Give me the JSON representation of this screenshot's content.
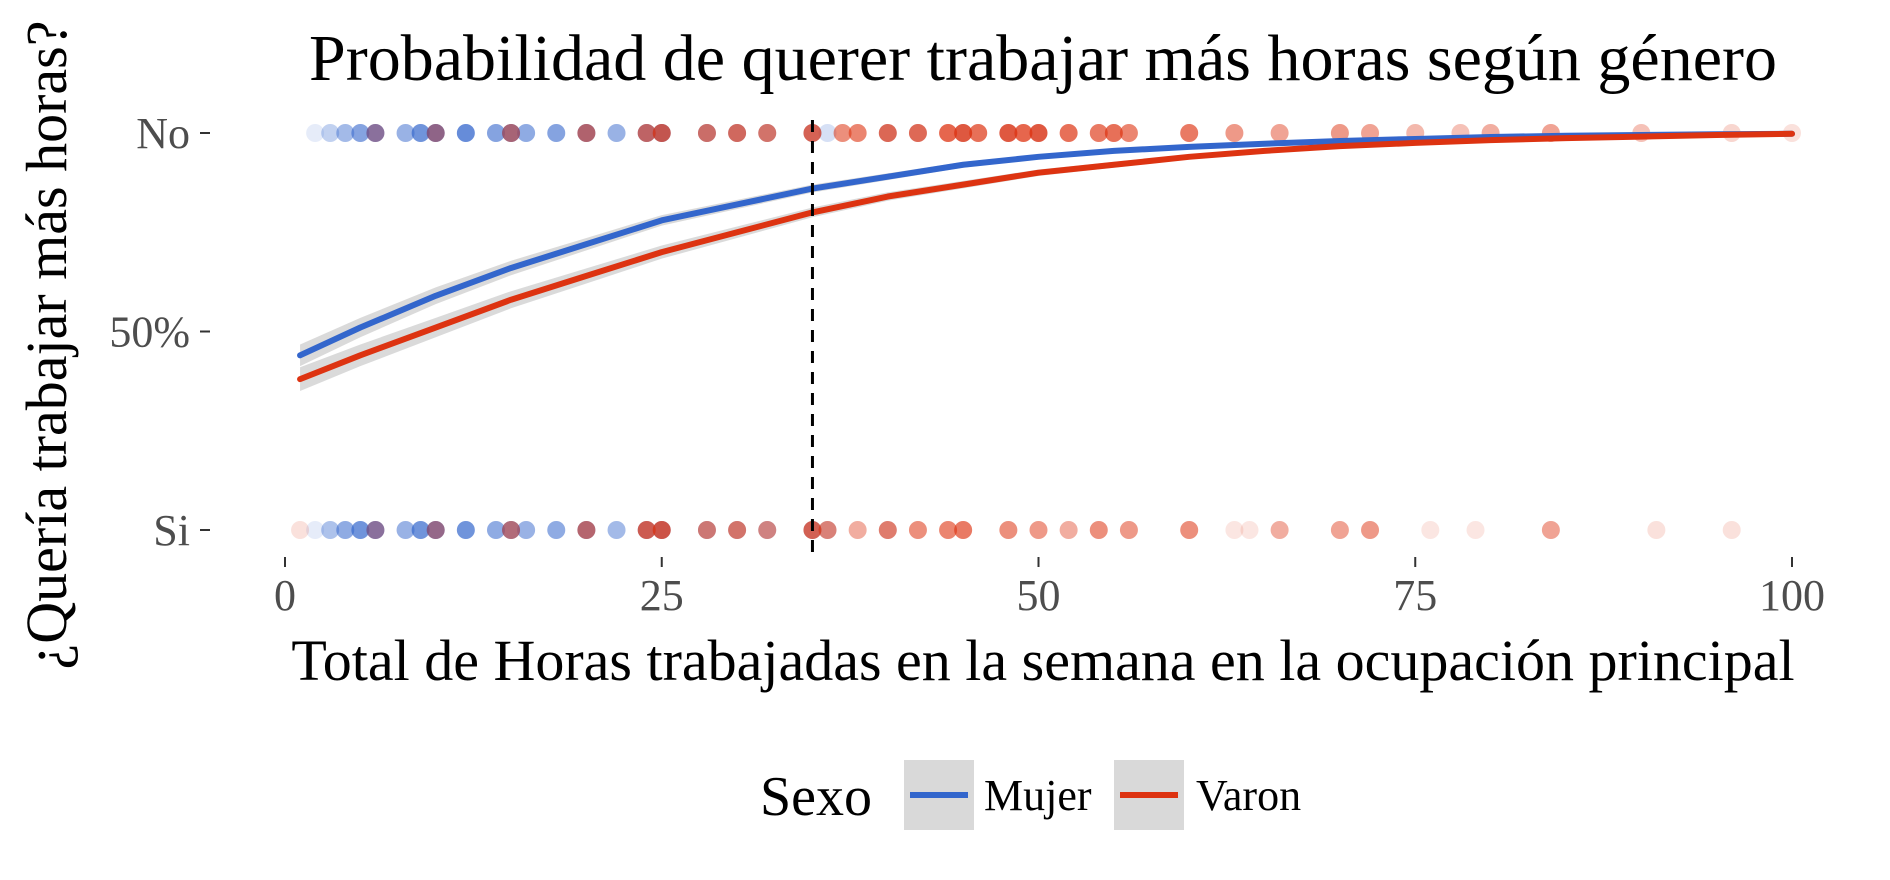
{
  "chart_data": {
    "type": "scatter",
    "title": "Probabilidad de querer trabajar más horas según género",
    "xlabel": "Total de Horas trabajadas en la semana en la ocupación principal",
    "ylabel": "¿Quería trabajar más horas?",
    "xlim": [
      0,
      100
    ],
    "x_ticks": [
      0,
      25,
      50,
      75,
      100
    ],
    "x_tick_labels": [
      "0",
      "25",
      "50",
      "75",
      "100"
    ],
    "y_ticks": [
      0,
      0.5,
      1
    ],
    "y_tick_labels": [
      "Si",
      "50%",
      "No"
    ],
    "ylim": [
      0,
      1
    ],
    "grid": false,
    "legend": {
      "title": "Sexo",
      "position": "bottom",
      "items": [
        {
          "label": "Mujer",
          "color": "#3366cc"
        },
        {
          "label": "Varon",
          "color": "#dd3311"
        }
      ]
    },
    "reference_line": {
      "x": 35,
      "style": "dashed",
      "color": "#000000"
    },
    "series": [
      {
        "name": "Mujer",
        "kind": "logistic-fit",
        "color": "#3366cc",
        "x": [
          1,
          5,
          10,
          15,
          20,
          25,
          30,
          35,
          40,
          45,
          50,
          55,
          60,
          65,
          70,
          75,
          80,
          85,
          90,
          95,
          100
        ],
        "y": [
          0.44,
          0.51,
          0.59,
          0.66,
          0.72,
          0.78,
          0.82,
          0.86,
          0.89,
          0.92,
          0.94,
          0.955,
          0.965,
          0.973,
          0.98,
          0.985,
          0.99,
          0.993,
          0.995,
          0.997,
          0.998
        ]
      },
      {
        "name": "Varon",
        "kind": "logistic-fit",
        "color": "#dd3311",
        "x": [
          1,
          5,
          10,
          15,
          20,
          25,
          30,
          35,
          40,
          45,
          50,
          55,
          60,
          65,
          70,
          75,
          80,
          85,
          90,
          95,
          100
        ],
        "y": [
          0.38,
          0.44,
          0.51,
          0.58,
          0.64,
          0.7,
          0.75,
          0.8,
          0.84,
          0.87,
          0.9,
          0.92,
          0.94,
          0.955,
          0.967,
          0.975,
          0.982,
          0.987,
          0.991,
          0.995,
          0.998
        ]
      }
    ],
    "points": [
      {
        "group": "Mujer",
        "y": 1,
        "x": [
          2,
          3,
          4,
          5,
          6,
          8,
          9,
          10,
          12,
          14,
          15,
          16,
          18,
          20,
          22,
          24,
          25,
          28,
          30,
          32,
          35,
          36,
          40,
          42,
          45,
          48,
          50
        ],
        "alpha": [
          0.12,
          0.3,
          0.45,
          0.6,
          0.75,
          0.5,
          0.7,
          0.8,
          0.75,
          0.6,
          0.7,
          0.55,
          0.6,
          0.65,
          0.5,
          0.55,
          0.6,
          0.4,
          0.35,
          0.3,
          0.3,
          0.2,
          0.2,
          0.15,
          0.15,
          0.12,
          0.12
        ]
      },
      {
        "group": "Varon",
        "y": 1,
        "x": [
          6,
          10,
          15,
          20,
          24,
          25,
          28,
          30,
          32,
          35,
          37,
          38,
          40,
          42,
          44,
          45,
          46,
          48,
          49,
          50,
          52,
          54,
          55,
          56,
          60,
          63,
          66,
          70,
          72,
          75,
          78,
          80,
          84,
          90,
          96,
          100
        ],
        "alpha": [
          0.3,
          0.4,
          0.5,
          0.55,
          0.6,
          0.7,
          0.6,
          0.65,
          0.6,
          0.7,
          0.55,
          0.6,
          0.7,
          0.7,
          0.75,
          0.8,
          0.7,
          0.8,
          0.75,
          0.8,
          0.7,
          0.65,
          0.7,
          0.6,
          0.65,
          0.5,
          0.45,
          0.5,
          0.45,
          0.35,
          0.3,
          0.4,
          0.45,
          0.3,
          0.2,
          0.15
        ]
      },
      {
        "group": "Mujer",
        "y": 0,
        "x": [
          2,
          3,
          4,
          5,
          6,
          8,
          9,
          10,
          12,
          14,
          15,
          16,
          18,
          20,
          22,
          24,
          25,
          28,
          30,
          32,
          35,
          36,
          40
        ],
        "alpha": [
          0.12,
          0.4,
          0.55,
          0.7,
          0.75,
          0.5,
          0.7,
          0.75,
          0.7,
          0.55,
          0.6,
          0.5,
          0.55,
          0.6,
          0.45,
          0.45,
          0.5,
          0.35,
          0.3,
          0.3,
          0.35,
          0.2,
          0.15
        ]
      },
      {
        "group": "Varon",
        "y": 0,
        "x": [
          1,
          6,
          10,
          15,
          20,
          24,
          25,
          28,
          30,
          32,
          35,
          36,
          38,
          40,
          42,
          44,
          45,
          48,
          50,
          52,
          54,
          56,
          60,
          63,
          64,
          66,
          70,
          72,
          76,
          79,
          84,
          91,
          96
        ],
        "alpha": [
          0.15,
          0.3,
          0.4,
          0.5,
          0.55,
          0.7,
          0.75,
          0.55,
          0.6,
          0.5,
          0.7,
          0.55,
          0.4,
          0.6,
          0.55,
          0.6,
          0.65,
          0.55,
          0.5,
          0.4,
          0.55,
          0.5,
          0.55,
          0.12,
          0.12,
          0.4,
          0.45,
          0.5,
          0.12,
          0.12,
          0.45,
          0.15,
          0.15
        ]
      }
    ]
  }
}
